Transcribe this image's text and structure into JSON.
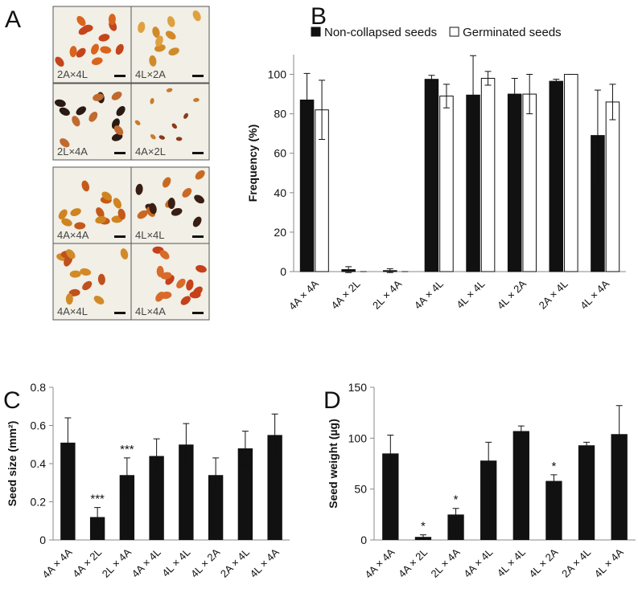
{
  "panel_labels": [
    "A",
    "B",
    "C",
    "D"
  ],
  "image_panel": {
    "labels": [
      "2A×4L",
      "4L×2A",
      "2L×4A",
      "4A×2L",
      "4A×4A",
      "4L×4L",
      "4A×4L",
      "4L×4A"
    ]
  },
  "chart_data": [
    {
      "type": "grouped_bar",
      "categories": [
        "4A × 4A",
        "4A × 2L",
        "2L × 4A",
        "4A × 4L",
        "4L × 4L",
        "4L × 2A",
        "2A × 4L",
        "4L × 4A"
      ],
      "series": [
        {
          "name": "Non-collapsed seeds",
          "color": "#111111",
          "values": [
            87,
            1,
            0.5,
            97.5,
            89.5,
            90,
            96.5,
            69
          ],
          "errors": [
            13.5,
            1.5,
            1,
            2,
            20,
            8,
            1,
            23
          ]
        },
        {
          "name": "Germinated seeds",
          "color": "#ffffff",
          "values": [
            82,
            0,
            0,
            89,
            98,
            90,
            100,
            86
          ],
          "errors": [
            15,
            0,
            0,
            6,
            3.5,
            10,
            0,
            9
          ]
        }
      ],
      "ylabel": "Frequency (%)",
      "ylim": [
        0,
        110
      ],
      "yticks": [
        0,
        20,
        40,
        60,
        80,
        100
      ],
      "legend": "top"
    },
    {
      "type": "bar",
      "categories": [
        "4A × 4A",
        "4A × 2L",
        "2L × 4A",
        "4A × 4L",
        "4L × 4L",
        "4L × 2A",
        "2A × 4L",
        "4L × 4A"
      ],
      "values": [
        0.51,
        0.12,
        0.34,
        0.44,
        0.5,
        0.34,
        0.48,
        0.55
      ],
      "errors": [
        0.13,
        0.05,
        0.09,
        0.09,
        0.11,
        0.09,
        0.09,
        0.11
      ],
      "significance": [
        null,
        "***",
        "***",
        null,
        null,
        null,
        null,
        null
      ],
      "color": "#111111",
      "ylabel": "Seed size (mm²)",
      "ylim": [
        0,
        0.8
      ],
      "yticks": [
        0,
        0.2,
        0.4,
        0.6,
        0.8
      ]
    },
    {
      "type": "bar",
      "categories": [
        "4A × 4A",
        "4A × 2L",
        "2L × 4A",
        "4A × 4L",
        "4L × 4L",
        "4L × 2A",
        "2A × 4L",
        "4L × 4A"
      ],
      "values": [
        85,
        3,
        25,
        78,
        107,
        58,
        93,
        104
      ],
      "errors": [
        18,
        2,
        6,
        18,
        5,
        6,
        3,
        28
      ],
      "significance": [
        null,
        "*",
        "*",
        null,
        null,
        "*",
        null,
        null
      ],
      "color": "#111111",
      "ylabel": "Seed weight (µg)",
      "ylim": [
        0,
        150
      ],
      "yticks": [
        0,
        50,
        100,
        150
      ]
    }
  ]
}
